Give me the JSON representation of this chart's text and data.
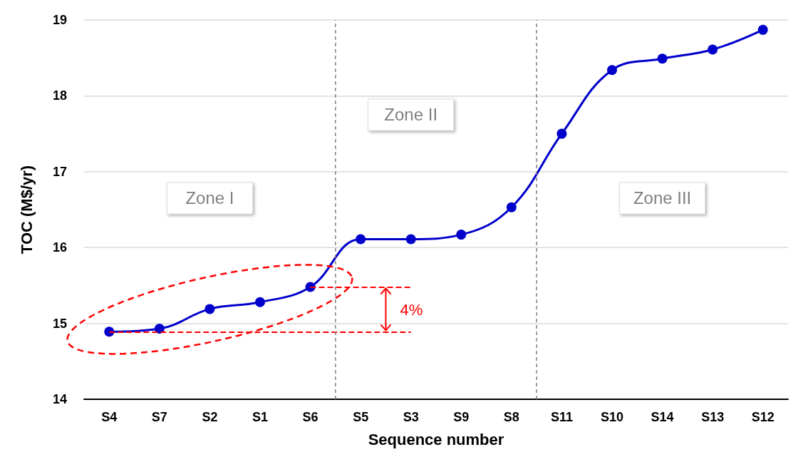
{
  "chart_data": {
    "type": "line",
    "xlabel": "Sequence number",
    "ylabel": "TOC (M$/yr)",
    "categories": [
      "S4",
      "S7",
      "S2",
      "S1",
      "S6",
      "S5",
      "S3",
      "S9",
      "S8",
      "S11",
      "S10",
      "S14",
      "S13",
      "S12"
    ],
    "series": [
      {
        "color": "#0000cc",
        "values": [
          14.89,
          14.93,
          15.19,
          15.28,
          15.48,
          16.11,
          16.11,
          16.17,
          16.53,
          17.5,
          18.34,
          18.49,
          18.61,
          18.87
        ]
      }
    ],
    "ylim": [
      14,
      19
    ],
    "yticks": [
      14,
      15,
      16,
      17,
      18,
      19
    ],
    "grid": "y",
    "marker": "circle",
    "line_style": "solid",
    "ref_lines": [
      {
        "axis": "y",
        "value": 15.48,
        "color": "#ff0000",
        "line_style": "dashed"
      },
      {
        "axis": "y",
        "value": 14.89,
        "color": "#ff0000",
        "line_style": "dashed"
      }
    ],
    "annotations": [
      "Zone I",
      "Zone II",
      "Zone III",
      "4%"
    ]
  }
}
